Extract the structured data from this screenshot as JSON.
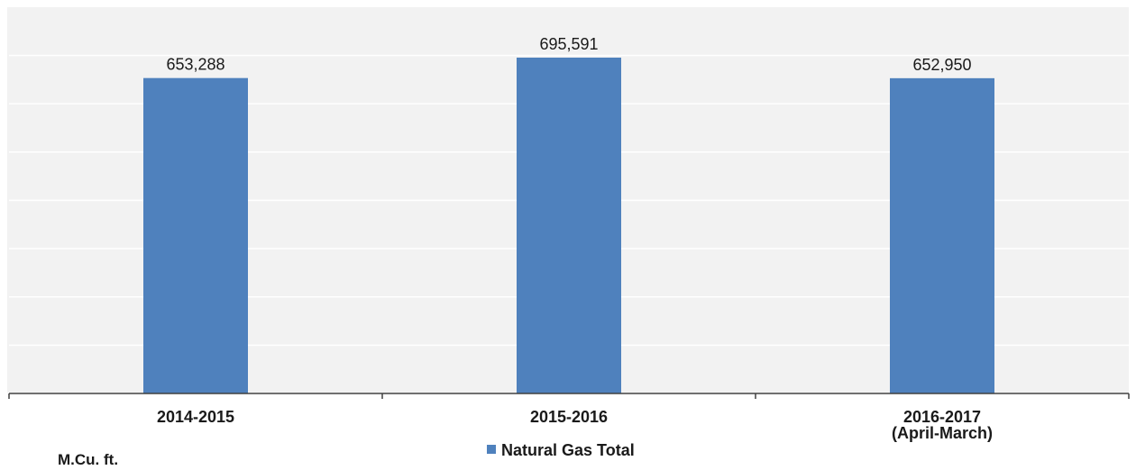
{
  "chart_data": {
    "type": "bar",
    "categories": [
      "2014-2015",
      "2015-2016",
      "2016-2017\n(April-March)"
    ],
    "series": [
      {
        "name": "Natural Gas Total",
        "values": [
          653288,
          695591,
          652950
        ],
        "data_labels": [
          "653,288",
          "695,591",
          "652,950"
        ]
      }
    ],
    "unit_label": "M.Cu. ft.",
    "ylim": [
      0,
      800000
    ],
    "y_gridline_step": 100000,
    "grid": true,
    "legend": "bottom-center",
    "colors": {
      "bar": "#4f81bd",
      "plot_background": "#f2f2f2",
      "gridline": "#ffffff",
      "axis": "#404040"
    }
  }
}
